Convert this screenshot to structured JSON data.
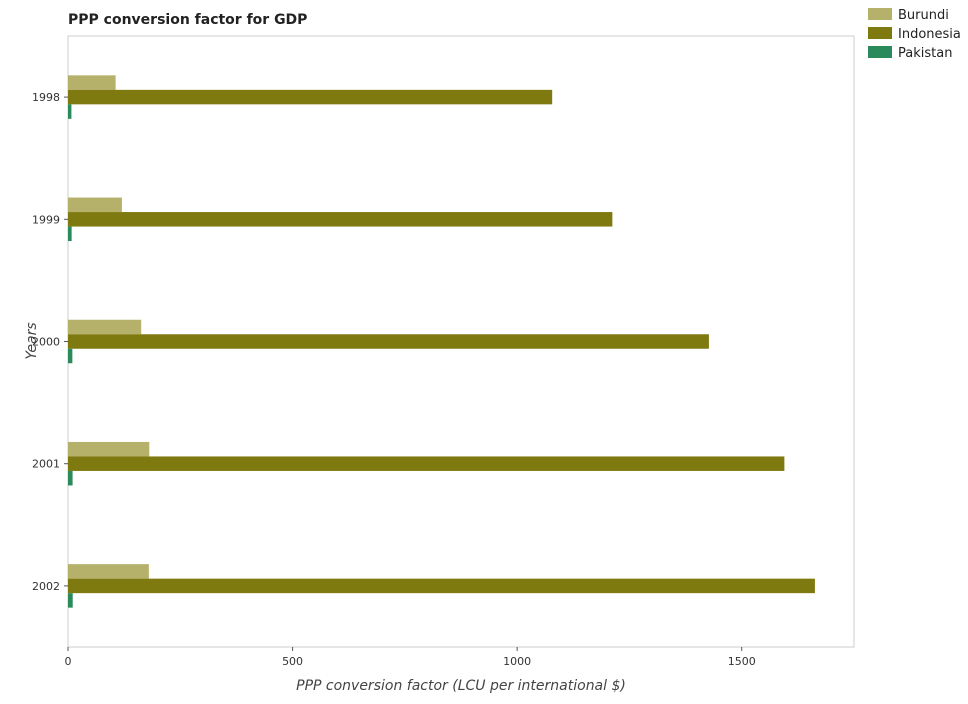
{
  "chart_data": {
    "type": "bar",
    "orientation": "horizontal",
    "title": "PPP conversion factor for GDP",
    "xlabel": "PPP conversion factor (LCU per international $)",
    "ylabel": "Years",
    "categories": [
      "1998",
      "1999",
      "2000",
      "2001",
      "2002"
    ],
    "series": [
      {
        "name": "Burundi",
        "color": "#b5b06a",
        "values": [
          106,
          120,
          163,
          181,
          180
        ]
      },
      {
        "name": "Indonesia",
        "color": "#7f7a10",
        "values": [
          1078,
          1212,
          1427,
          1595,
          1663
        ]
      },
      {
        "name": "Pakistan",
        "color": "#2b8a5b",
        "values": [
          7.6,
          8.1,
          9.7,
          10.2,
          10.5
        ]
      }
    ],
    "xlim": [
      0,
      1750
    ],
    "xticks": [
      0,
      500,
      1000,
      1500
    ],
    "grid": false,
    "legend_position": "top-right"
  }
}
